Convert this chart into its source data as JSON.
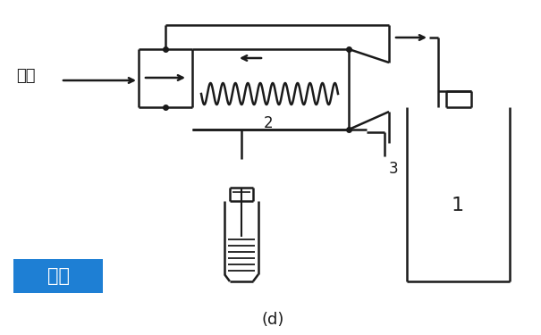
{
  "bg_color": "#ffffff",
  "line_color": "#1a1a1a",
  "title_label": "(d)",
  "label_zaiq": "载气",
  "label_jiny": "进样",
  "label_1": "1",
  "label_2": "2",
  "label_3": "3",
  "jiny_bg": "#1e7fd4",
  "jiny_text_color": "#ffffff",
  "figw": 6.05,
  "figh": 3.75,
  "dpi": 100
}
